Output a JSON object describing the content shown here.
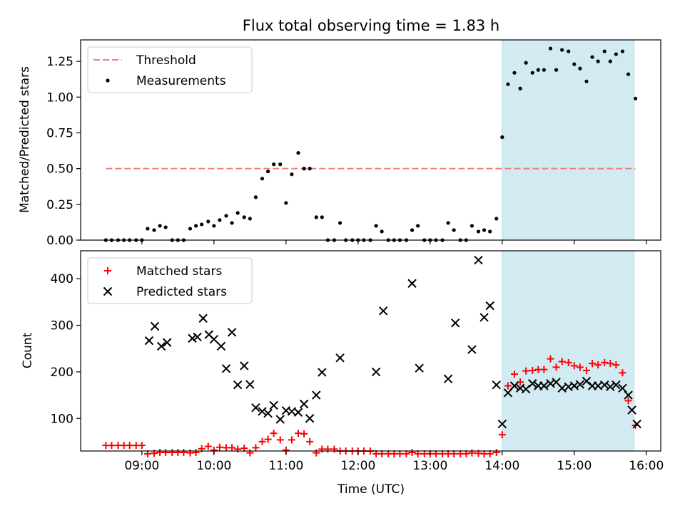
{
  "chart_data": [
    {
      "type": "scatter",
      "title": "Flux total observing time = 1.83 h",
      "xlabel": "",
      "ylabel": "Matched/Predicted stars",
      "ylim": [
        0,
        1.4
      ],
      "yticks": [
        0.0,
        0.25,
        0.5,
        0.75,
        1.0,
        1.25
      ],
      "ytick_labels": [
        "0.00",
        "0.25",
        "0.50",
        "0.75",
        "1.00",
        "1.25"
      ],
      "xlim_hours": [
        8.15,
        16.2
      ],
      "xticks_hours": [
        9,
        10,
        11,
        12,
        13,
        14,
        15,
        16
      ],
      "xtick_labels": [
        "",
        "",
        "",
        "",
        "",
        "",
        "",
        ""
      ],
      "shaded_region_hours": [
        14.0,
        15.83
      ],
      "shaded_color": "#add8e6",
      "legend_position": "upper-left",
      "legend": [
        {
          "label": "Threshold",
          "style": "dashed-line",
          "color": "#f08080"
        },
        {
          "label": "Measurements",
          "style": "dot",
          "color": "#000000"
        }
      ],
      "threshold": {
        "value": 0.5,
        "x_start": 8.5,
        "x_end": 15.85,
        "color": "#f08080"
      },
      "series": [
        {
          "name": "Measurements",
          "color": "#000000",
          "marker": "dot",
          "points": [
            [
              8.5,
              0
            ],
            [
              8.58,
              0
            ],
            [
              8.67,
              0
            ],
            [
              8.75,
              0
            ],
            [
              8.83,
              0
            ],
            [
              8.92,
              0
            ],
            [
              9.0,
              0
            ],
            [
              9.08,
              0.08
            ],
            [
              9.17,
              0.07
            ],
            [
              9.25,
              0.1
            ],
            [
              9.33,
              0.09
            ],
            [
              9.42,
              0
            ],
            [
              9.5,
              0
            ],
            [
              9.58,
              0
            ],
            [
              9.67,
              0.08
            ],
            [
              9.75,
              0.1
            ],
            [
              9.83,
              0.11
            ],
            [
              9.92,
              0.13
            ],
            [
              10.0,
              0.1
            ],
            [
              10.08,
              0.14
            ],
            [
              10.17,
              0.17
            ],
            [
              10.25,
              0.12
            ],
            [
              10.33,
              0.19
            ],
            [
              10.42,
              0.16
            ],
            [
              10.5,
              0.15
            ],
            [
              10.58,
              0.3
            ],
            [
              10.67,
              0.43
            ],
            [
              10.75,
              0.48
            ],
            [
              10.83,
              0.53
            ],
            [
              10.92,
              0.53
            ],
            [
              11.0,
              0.26
            ],
            [
              11.08,
              0.46
            ],
            [
              11.17,
              0.61
            ],
            [
              11.25,
              0.5
            ],
            [
              11.33,
              0.5
            ],
            [
              11.42,
              0.16
            ],
            [
              11.5,
              0.16
            ],
            [
              11.58,
              0
            ],
            [
              11.67,
              0
            ],
            [
              11.75,
              0.12
            ],
            [
              11.83,
              0
            ],
            [
              11.92,
              0
            ],
            [
              12.0,
              0
            ],
            [
              12.08,
              0
            ],
            [
              12.17,
              0
            ],
            [
              12.25,
              0.1
            ],
            [
              12.33,
              0.06
            ],
            [
              12.42,
              0
            ],
            [
              12.5,
              0
            ],
            [
              12.58,
              0
            ],
            [
              12.67,
              0
            ],
            [
              12.75,
              0.07
            ],
            [
              12.83,
              0.1
            ],
            [
              12.92,
              0
            ],
            [
              13.0,
              0
            ],
            [
              13.08,
              0
            ],
            [
              13.17,
              0
            ],
            [
              13.25,
              0.12
            ],
            [
              13.33,
              0.07
            ],
            [
              13.42,
              0
            ],
            [
              13.5,
              0
            ],
            [
              13.58,
              0.1
            ],
            [
              13.67,
              0.06
            ],
            [
              13.75,
              0.07
            ],
            [
              13.83,
              0.06
            ],
            [
              13.92,
              0.15
            ],
            [
              14.0,
              0.72
            ],
            [
              14.08,
              1.09
            ],
            [
              14.17,
              1.17
            ],
            [
              14.25,
              1.06
            ],
            [
              14.33,
              1.24
            ],
            [
              14.42,
              1.17
            ],
            [
              14.5,
              1.19
            ],
            [
              14.58,
              1.19
            ],
            [
              14.67,
              1.34
            ],
            [
              14.75,
              1.19
            ],
            [
              14.83,
              1.33
            ],
            [
              14.92,
              1.32
            ],
            [
              15.0,
              1.23
            ],
            [
              15.08,
              1.2
            ],
            [
              15.17,
              1.11
            ],
            [
              15.25,
              1.28
            ],
            [
              15.33,
              1.25
            ],
            [
              15.42,
              1.32
            ],
            [
              15.5,
              1.25
            ],
            [
              15.58,
              1.3
            ],
            [
              15.67,
              1.32
            ],
            [
              15.75,
              1.16
            ],
            [
              15.85,
              0.99
            ]
          ]
        }
      ]
    },
    {
      "type": "scatter",
      "title": "",
      "xlabel": "Time (UTC)",
      "ylabel": "Count",
      "ylim": [
        30,
        460
      ],
      "yticks": [
        100,
        200,
        300,
        400
      ],
      "ytick_labels": [
        "100",
        "200",
        "300",
        "400"
      ],
      "xlim_hours": [
        8.15,
        16.2
      ],
      "xticks_hours": [
        9,
        10,
        11,
        12,
        13,
        14,
        15,
        16
      ],
      "xtick_labels": [
        "09:00",
        "10:00",
        "11:00",
        "12:00",
        "13:00",
        "14:00",
        "15:00",
        "16:00"
      ],
      "shaded_region_hours": [
        14.0,
        15.83
      ],
      "shaded_color": "#add8e6",
      "legend_position": "upper-left",
      "legend": [
        {
          "label": "Matched stars",
          "style": "plus",
          "color": "#ff0000"
        },
        {
          "label": "Predicted stars",
          "style": "x",
          "color": "#000000"
        }
      ],
      "series": [
        {
          "name": "Matched stars",
          "color": "#ff0000",
          "marker": "plus",
          "points": [
            [
              8.5,
              42
            ],
            [
              8.58,
              42
            ],
            [
              8.67,
              42
            ],
            [
              8.75,
              42
            ],
            [
              8.83,
              42
            ],
            [
              8.92,
              42
            ],
            [
              9.0,
              42
            ],
            [
              9.08,
              24
            ],
            [
              9.17,
              25
            ],
            [
              9.25,
              27
            ],
            [
              9.33,
              27
            ],
            [
              9.42,
              27
            ],
            [
              9.5,
              27
            ],
            [
              9.58,
              27
            ],
            [
              9.67,
              26
            ],
            [
              9.75,
              27
            ],
            [
              9.83,
              35
            ],
            [
              9.92,
              40
            ],
            [
              10.0,
              32
            ],
            [
              10.08,
              38
            ],
            [
              10.17,
              37
            ],
            [
              10.25,
              37
            ],
            [
              10.33,
              34
            ],
            [
              10.42,
              36
            ],
            [
              10.5,
              26
            ],
            [
              10.58,
              37
            ],
            [
              10.67,
              50
            ],
            [
              10.75,
              55
            ],
            [
              10.83,
              68
            ],
            [
              10.92,
              54
            ],
            [
              11.0,
              32
            ],
            [
              11.08,
              54
            ],
            [
              11.17,
              68
            ],
            [
              11.25,
              67
            ],
            [
              11.33,
              50
            ],
            [
              11.42,
              26
            ],
            [
              11.5,
              34
            ],
            [
              11.58,
              34
            ],
            [
              11.67,
              34
            ],
            [
              11.75,
              30
            ],
            [
              11.83,
              30
            ],
            [
              11.92,
              30
            ],
            [
              12.0,
              30
            ],
            [
              12.08,
              30
            ],
            [
              12.17,
              30
            ],
            [
              12.25,
              24
            ],
            [
              12.33,
              24
            ],
            [
              12.42,
              24
            ],
            [
              12.5,
              24
            ],
            [
              12.58,
              24
            ],
            [
              12.67,
              24
            ],
            [
              12.75,
              27
            ],
            [
              12.83,
              24
            ],
            [
              12.92,
              24
            ],
            [
              13.0,
              24
            ],
            [
              13.08,
              24
            ],
            [
              13.17,
              24
            ],
            [
              13.25,
              24
            ],
            [
              13.33,
              24
            ],
            [
              13.42,
              24
            ],
            [
              13.5,
              24
            ],
            [
              13.58,
              26
            ],
            [
              13.67,
              25
            ],
            [
              13.75,
              24
            ],
            [
              13.83,
              24
            ],
            [
              13.92,
              27
            ],
            [
              14.0,
              65
            ],
            [
              14.08,
              170
            ],
            [
              14.17,
              195
            ],
            [
              14.25,
              178
            ],
            [
              14.33,
              202
            ],
            [
              14.42,
              203
            ],
            [
              14.5,
              205
            ],
            [
              14.58,
              205
            ],
            [
              14.67,
              228
            ],
            [
              14.75,
              210
            ],
            [
              14.83,
              222
            ],
            [
              14.92,
              220
            ],
            [
              15.0,
              213
            ],
            [
              15.08,
              210
            ],
            [
              15.17,
              203
            ],
            [
              15.25,
              218
            ],
            [
              15.33,
              215
            ],
            [
              15.42,
              220
            ],
            [
              15.5,
              218
            ],
            [
              15.58,
              215
            ],
            [
              15.67,
              198
            ],
            [
              15.75,
              138
            ],
            [
              15.85,
              85
            ]
          ]
        },
        {
          "name": "Predicted stars",
          "color": "#000000",
          "marker": "x",
          "points": [
            [
              9.1,
              267
            ],
            [
              9.18,
              298
            ],
            [
              9.27,
              255
            ],
            [
              9.35,
              263
            ],
            [
              9.7,
              272
            ],
            [
              9.77,
              275
            ],
            [
              9.85,
              315
            ],
            [
              9.93,
              280
            ],
            [
              10.0,
              270
            ],
            [
              10.1,
              255
            ],
            [
              10.17,
              207
            ],
            [
              10.25,
              285
            ],
            [
              10.33,
              172
            ],
            [
              10.42,
              213
            ],
            [
              10.5,
              173
            ],
            [
              10.58,
              123
            ],
            [
              10.67,
              115
            ],
            [
              10.75,
              111
            ],
            [
              10.83,
              128
            ],
            [
              10.92,
              98
            ],
            [
              11.0,
              117
            ],
            [
              11.08,
              115
            ],
            [
              11.17,
              113
            ],
            [
              11.25,
              131
            ],
            [
              11.33,
              100
            ],
            [
              11.42,
              150
            ],
            [
              11.5,
              199
            ],
            [
              11.75,
              230
            ],
            [
              12.25,
              200
            ],
            [
              12.35,
              331
            ],
            [
              12.75,
              390
            ],
            [
              12.85,
              208
            ],
            [
              13.25,
              185
            ],
            [
              13.35,
              305
            ],
            [
              13.58,
              248
            ],
            [
              13.67,
              440
            ],
            [
              13.75,
              317
            ],
            [
              13.83,
              342
            ],
            [
              13.92,
              172
            ],
            [
              14.0,
              88
            ],
            [
              14.08,
              155
            ],
            [
              14.17,
              170
            ],
            [
              14.25,
              165
            ],
            [
              14.33,
              163
            ],
            [
              14.42,
              175
            ],
            [
              14.5,
              170
            ],
            [
              14.58,
              170
            ],
            [
              14.67,
              175
            ],
            [
              14.75,
              178
            ],
            [
              14.83,
              165
            ],
            [
              14.92,
              168
            ],
            [
              15.0,
              170
            ],
            [
              15.08,
              173
            ],
            [
              15.17,
              180
            ],
            [
              15.25,
              170
            ],
            [
              15.33,
              170
            ],
            [
              15.42,
              172
            ],
            [
              15.5,
              168
            ],
            [
              15.58,
              172
            ],
            [
              15.67,
              165
            ],
            [
              15.75,
              150
            ],
            [
              15.8,
              118
            ],
            [
              15.87,
              88
            ]
          ]
        }
      ]
    }
  ]
}
